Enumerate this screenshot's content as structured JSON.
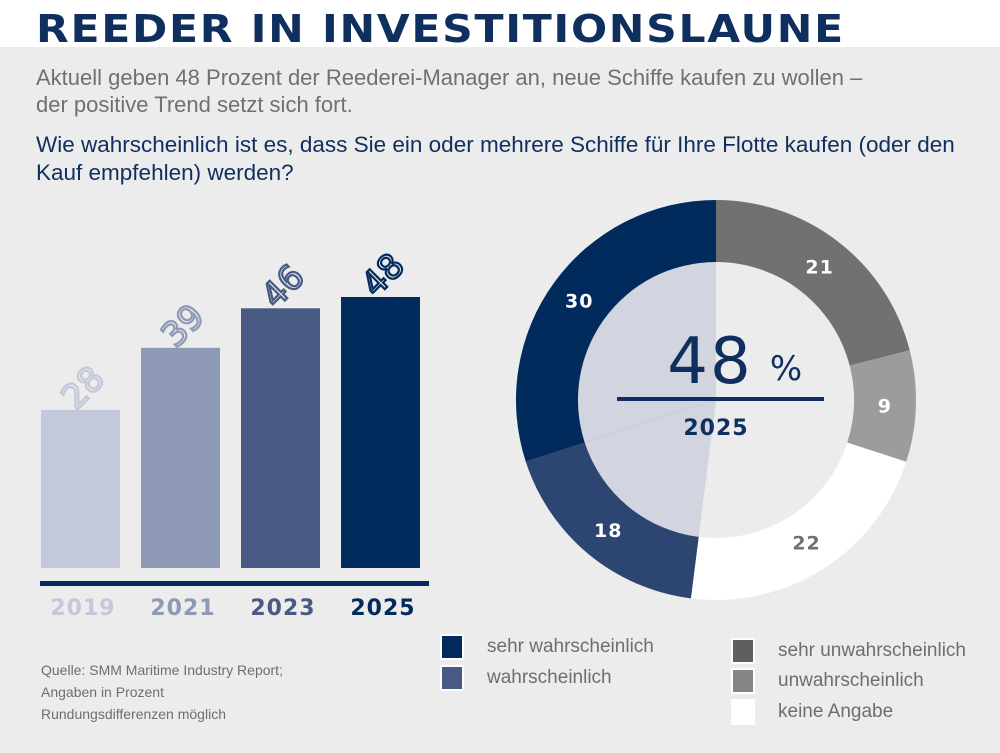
{
  "header": {
    "title": "REEDER IN INVESTITIONSLAUNE",
    "lead": "Aktuell geben 48 Prozent der Reederei-Manager an, neue Schiffe kaufen zu wollen – der positive Trend setzt sich fort.",
    "question": "Wie wahrscheinlich ist es, dass Sie ein oder mehrere Schiffe für Ihre Flotte kaufen (oder den Kauf empfehlen) werden?"
  },
  "colors": {
    "navy": "#002b5c",
    "blue_mid": "#2d4571",
    "bar_2023": "#485a84",
    "bar_2021": "#8e99b5",
    "bar_2019": "#c3c8da",
    "gray_dark": "#717171",
    "gray_mid": "#9c9c9c",
    "white": "#ffffff",
    "background": "#ececec",
    "inner_tint": "#d2d5df"
  },
  "chart_data": [
    {
      "type": "bar",
      "title": "",
      "categories": [
        "2019",
        "2021",
        "2023",
        "2025"
      ],
      "values": [
        28,
        39,
        46,
        48
      ],
      "unit": "%",
      "xlabel": "",
      "ylabel": "",
      "ylim": [
        0,
        48
      ],
      "grid": false,
      "bar_colors": [
        "#c3c8da",
        "#8e99b5",
        "#485a84",
        "#002b5c"
      ],
      "value_labels": [
        "28",
        "39",
        "46",
        "48"
      ]
    },
    {
      "type": "pie",
      "variant": "donut",
      "title": "2025",
      "center_value": "48",
      "center_unit": "%",
      "center_label": "2025",
      "slices": [
        {
          "label": "sehr unwahrscheinlich",
          "value": 21,
          "color": "#717171",
          "text_color": "#ffffff"
        },
        {
          "label": "unwahrscheinlich",
          "value": 9,
          "color": "#9c9c9c",
          "text_color": "#ffffff"
        },
        {
          "label": "keine Angabe",
          "value": 22,
          "color": "#ffffff",
          "text_color": "#717171"
        },
        {
          "label": "wahrscheinlich",
          "value": 18,
          "color": "#2d4571",
          "text_color": "#ffffff"
        },
        {
          "label": "sehr wahrscheinlich",
          "value": 30,
          "color": "#002b5c",
          "text_color": "#ffffff"
        }
      ],
      "legend": {
        "placement": "bottom",
        "left_column": [
          {
            "label": "sehr wahrscheinlich",
            "color": "#002b5c"
          },
          {
            "label": "wahrscheinlich",
            "color": "#485a84"
          }
        ],
        "right_column": [
          {
            "label": "sehr unwahrscheinlich",
            "color": "#5f5f5f"
          },
          {
            "label": "unwahrscheinlich",
            "color": "#858585"
          },
          {
            "label": "keine Angabe",
            "color": "#ffffff"
          }
        ]
      }
    }
  ],
  "footer": {
    "source_lines": [
      "Quelle: SMM Maritime Industry Report;",
      "Angaben in Prozent",
      "Rundungsdifferenzen möglich"
    ]
  }
}
